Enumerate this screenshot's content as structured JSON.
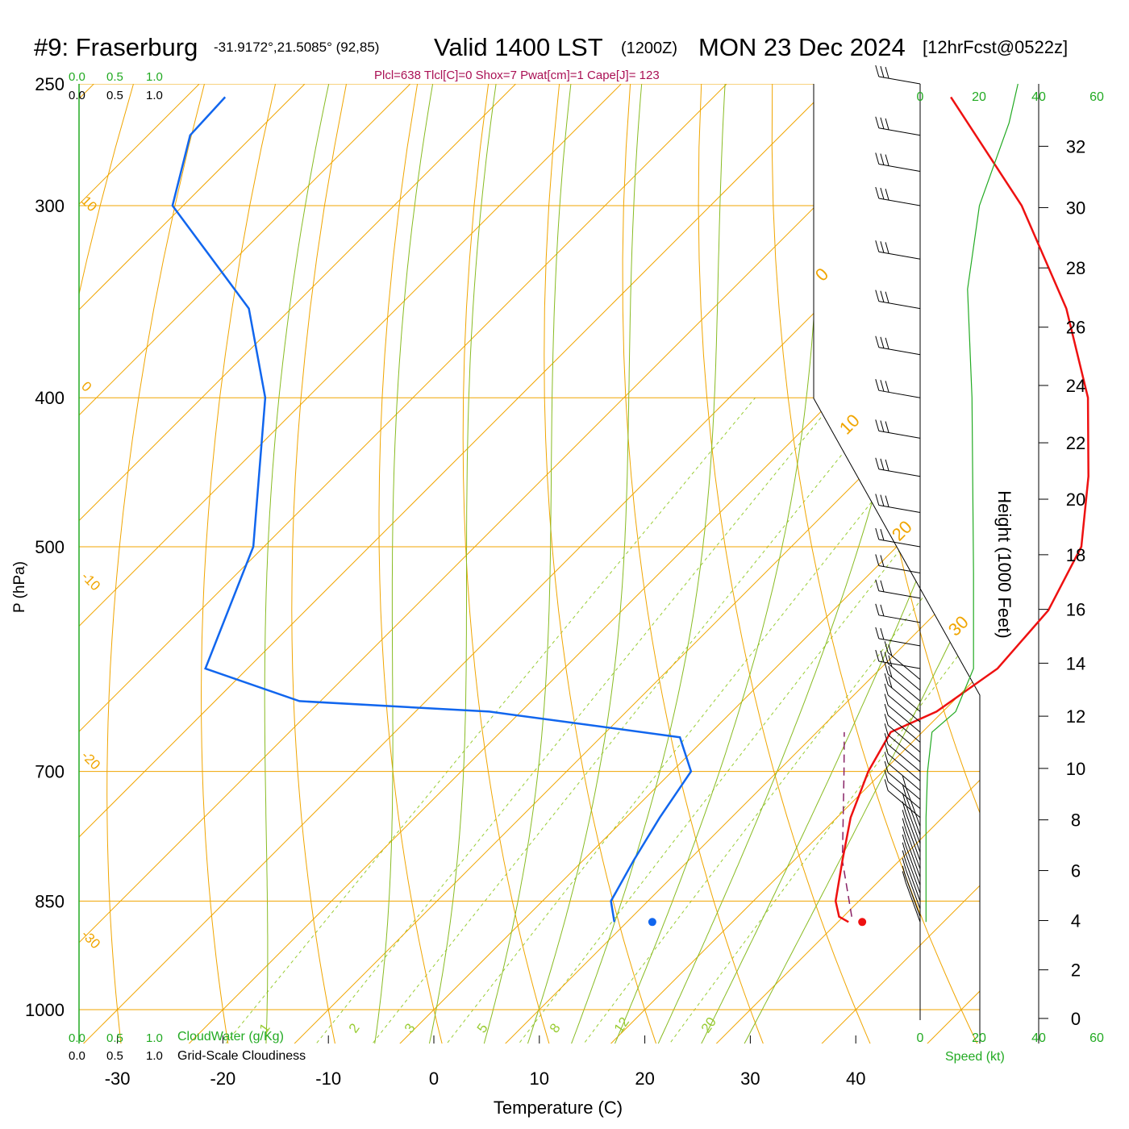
{
  "header": {
    "station": "#9: Fraserburg",
    "coords": "-31.9172°,21.5085° (92,85)",
    "valid": "Valid 1400 LST",
    "zulu": "(1200Z)",
    "date": "MON 23 Dec 2024",
    "forecast": "[12hrFcst@0522z]",
    "indices": "Plcl=638 Tlcl[C]=0 Shox=7 Pwat[cm]=1 Cape[J]= 123"
  },
  "colors": {
    "temperature": "#ee1111",
    "dewpoint": "#1166ee",
    "isotherm_adiabat": "#f0a500",
    "moist_adiabat": "#88bb22",
    "mixing_ratio": "#99cc33",
    "parcel": "#882266",
    "speed_profile": "#22aa22",
    "index_text": "#aa1155",
    "green_label": "#22aa22"
  },
  "chart_data": {
    "type": "skew-t",
    "xlabel": "Temperature (C)",
    "ylabel": "P (hPa)",
    "xticks": [
      "-30",
      "-20",
      "-10",
      "0",
      "10",
      "20",
      "30",
      "40"
    ],
    "yticks": [
      "250",
      "300",
      "400",
      "500",
      "700",
      "850",
      "1000"
    ],
    "height_axis_label": "Height (1000 Feet)",
    "height_ticks": [
      "0",
      "2",
      "4",
      "6",
      "8",
      "10",
      "12",
      "14",
      "16",
      "18",
      "20",
      "22",
      "24",
      "26",
      "28",
      "30",
      "32"
    ],
    "cloud_scale_labels": [
      "0.0",
      "0.5",
      "1.0"
    ],
    "cloud_water_label": "CloudWater (g/Kg)",
    "cloudiness_label": "Grid-Scale Cloudiness",
    "speed_label": "Speed (kt)",
    "speed_ticks": [
      "0",
      "20",
      "40",
      "60"
    ],
    "isotherm_labels": [
      "10",
      "0",
      "-10",
      "-20",
      "-30"
    ],
    "adiabat_labels": [
      "0",
      "10",
      "20",
      "30"
    ],
    "mixing_ratio_labels": [
      "1",
      "2",
      "3",
      "5",
      "8",
      "12",
      "20"
    ],
    "temperature_profile": [
      {
        "p": 877,
        "t": 31.0
      },
      {
        "p": 870,
        "t": 29.6
      },
      {
        "p": 850,
        "t": 27.8
      },
      {
        "p": 800,
        "t": 24.6
      },
      {
        "p": 750,
        "t": 21.3
      },
      {
        "p": 700,
        "t": 18.6
      },
      {
        "p": 660,
        "t": 17.0
      },
      {
        "p": 640,
        "t": 19.4
      },
      {
        "p": 600,
        "t": 21.1
      },
      {
        "p": 550,
        "t": 20.4
      },
      {
        "p": 500,
        "t": 17.5
      },
      {
        "p": 450,
        "t": 11.5
      },
      {
        "p": 400,
        "t": 4.0
      },
      {
        "p": 350,
        "t": -6.5
      },
      {
        "p": 300,
        "t": -20.5
      },
      {
        "p": 255,
        "t": -37.5
      }
    ],
    "dewpoint_profile": [
      {
        "p": 877,
        "t": 8.8
      },
      {
        "p": 850,
        "t": 6.5
      },
      {
        "p": 800,
        "t": 4.8
      },
      {
        "p": 750,
        "t": 3.2
      },
      {
        "p": 700,
        "t": 1.8
      },
      {
        "p": 665,
        "t": -2.5
      },
      {
        "p": 640,
        "t": -23
      },
      {
        "p": 630,
        "t": -42
      },
      {
        "p": 600,
        "t": -54
      },
      {
        "p": 500,
        "t": -61
      },
      {
        "p": 400,
        "t": -74
      },
      {
        "p": 350,
        "t": -84
      },
      {
        "p": 300,
        "t": -101
      },
      {
        "p": 270,
        "t": -106
      },
      {
        "p": 255,
        "t": -106.3
      }
    ],
    "parcel_path": [
      {
        "p": 870,
        "t": 30.8
      },
      {
        "p": 800,
        "t": 24.6
      },
      {
        "p": 700,
        "t": 16.3
      },
      {
        "p": 660,
        "t": 12.6
      }
    ],
    "surface_temperature": {
      "p": 877,
      "t": 32.3
    },
    "surface_dewpoint": {
      "p": 877,
      "t": 12.4
    },
    "wind_speed_profile": [
      {
        "p": 877,
        "kt": 2
      },
      {
        "p": 850,
        "kt": 2
      },
      {
        "p": 750,
        "kt": 2
      },
      {
        "p": 700,
        "kt": 2.5
      },
      {
        "p": 660,
        "kt": 4
      },
      {
        "p": 640,
        "kt": 12
      },
      {
        "p": 600,
        "kt": 18
      },
      {
        "p": 520,
        "kt": 18
      },
      {
        "p": 400,
        "kt": 17.5
      },
      {
        "p": 340,
        "kt": 16
      },
      {
        "p": 300,
        "kt": 20
      },
      {
        "p": 265,
        "kt": 30
      },
      {
        "p": 250,
        "kt": 33
      }
    ],
    "wind_barb_levels": [
      877,
      870,
      860,
      850,
      840,
      830,
      820,
      810,
      800,
      790,
      780,
      770,
      760,
      750,
      740,
      730,
      720,
      710,
      700,
      690,
      680,
      670,
      660,
      650,
      640,
      630,
      620,
      610,
      600,
      580,
      560,
      540,
      520,
      500,
      475,
      450,
      425,
      400,
      375,
      350,
      325,
      300,
      285,
      270,
      250
    ]
  }
}
